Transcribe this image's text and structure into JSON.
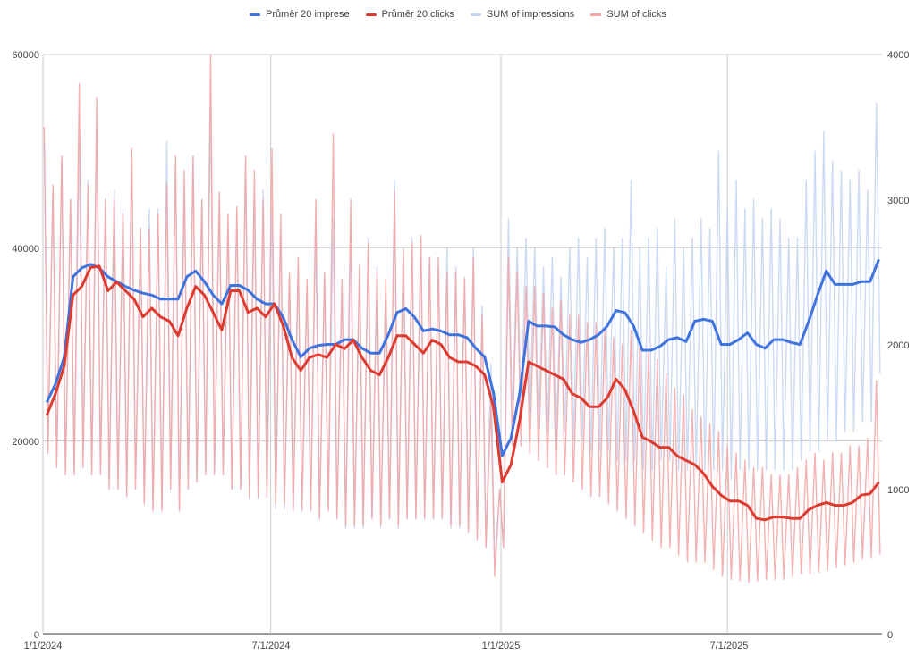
{
  "chart_data": {
    "type": "line",
    "title": "",
    "x_start": "2024-01-01",
    "interval": "weekly",
    "x_ticks": [
      "1/1/2024",
      "7/1/2024",
      "1/1/2025",
      "7/1/2025"
    ],
    "y_left": {
      "label": "",
      "range": [
        0,
        60000
      ],
      "ticks": [
        "0",
        "20000",
        "40000",
        "60000"
      ]
    },
    "y_right": {
      "label": "",
      "range": [
        0,
        4000
      ],
      "ticks": [
        "0",
        "1000",
        "2000",
        "3000",
        "4000"
      ]
    },
    "grid": true,
    "legend_position": "top",
    "series": [
      {
        "name": "Průměr 20 imprese",
        "axis": "left",
        "color": "#3f73dd",
        "kind": "moving-average",
        "values": [
          24000,
          25900,
          28700,
          37000,
          37900,
          38300,
          37900,
          37000,
          36500,
          36000,
          35600,
          35300,
          35100,
          34700,
          34700,
          34700,
          37000,
          37600,
          36500,
          35100,
          34200,
          36100,
          36100,
          35600,
          34700,
          34200,
          34200,
          32800,
          30500,
          28700,
          29600,
          29900,
          30000,
          30000,
          30500,
          30500,
          29600,
          29100,
          29100,
          31000,
          33300,
          33700,
          32800,
          31400,
          31600,
          31400,
          31000,
          31000,
          30700,
          29600,
          28700,
          25000,
          18500,
          20300,
          25000,
          32400,
          31900,
          31900,
          31800,
          31000,
          30500,
          30200,
          30500,
          31000,
          31900,
          33500,
          33300,
          31900,
          29400,
          29400,
          29800,
          30500,
          30700,
          30300,
          32400,
          32600,
          32400,
          30000,
          30000,
          30500,
          31200,
          30000,
          29600,
          30500,
          30500,
          30200,
          30000,
          32400,
          35100,
          37600,
          36200,
          36200,
          36200,
          36500,
          36500,
          38800
        ]
      },
      {
        "name": "Průměr 20 clicks",
        "axis": "right",
        "color": "#dd3b30",
        "kind": "moving-average",
        "values": [
          1510,
          1660,
          1850,
          2340,
          2400,
          2530,
          2540,
          2370,
          2430,
          2370,
          2310,
          2190,
          2250,
          2190,
          2160,
          2060,
          2250,
          2400,
          2340,
          2220,
          2100,
          2370,
          2370,
          2220,
          2250,
          2190,
          2280,
          2130,
          1910,
          1820,
          1910,
          1930,
          1910,
          2000,
          1970,
          2030,
          1910,
          1820,
          1790,
          1910,
          2060,
          2060,
          2000,
          1940,
          2030,
          2000,
          1910,
          1880,
          1880,
          1850,
          1790,
          1570,
          1050,
          1170,
          1480,
          1880,
          1850,
          1820,
          1790,
          1760,
          1660,
          1630,
          1570,
          1570,
          1630,
          1760,
          1690,
          1540,
          1360,
          1330,
          1290,
          1290,
          1230,
          1200,
          1170,
          1110,
          1020,
          960,
          920,
          920,
          890,
          800,
          790,
          810,
          810,
          800,
          800,
          860,
          890,
          910,
          890,
          890,
          910,
          960,
          970,
          1050
        ]
      },
      {
        "name": "SUM of impressions",
        "axis": "left",
        "color": "#c3d4f1",
        "kind": "daily",
        "weekly_peaks": [
          51000,
          46000,
          49000,
          45000,
          51000,
          47000,
          52000,
          45000,
          46000,
          44000,
          50000,
          42000,
          44000,
          44000,
          51000,
          49000,
          46000,
          49000,
          45000,
          54000,
          45000,
          42000,
          44000,
          49000,
          45000,
          46000,
          44000,
          42000,
          37000,
          38000,
          36000,
          42000,
          37000,
          43000,
          36000,
          42000,
          38000,
          41000,
          38000,
          36000,
          47000,
          40000,
          41000,
          41000,
          39000,
          38000,
          40000,
          38000,
          37000,
          40000,
          34000,
          28000,
          15000,
          43000,
          40000,
          41000,
          40000,
          38000,
          39000,
          37000,
          40000,
          41000,
          39000,
          41000,
          42000,
          40000,
          41000,
          47000,
          40000,
          41000,
          42000,
          38000,
          43000,
          40000,
          41000,
          43000,
          42000,
          50000,
          44000,
          47000,
          44000,
          45000,
          43000,
          44000,
          43000,
          41000,
          41000,
          47000,
          50000,
          52000,
          49000,
          48000,
          47000,
          48000,
          46000,
          55000
        ],
        "weekly_troughs": [
          20000,
          18000,
          17000,
          17000,
          19000,
          17000,
          17000,
          16000,
          16000,
          15000,
          16000,
          14000,
          13000,
          13000,
          16000,
          13000,
          16000,
          16000,
          17000,
          17000,
          17000,
          15000,
          15000,
          14000,
          14000,
          14000,
          13000,
          13000,
          13000,
          13000,
          13000,
          12000,
          13000,
          12000,
          11000,
          11000,
          11000,
          12000,
          11000,
          12000,
          11000,
          12000,
          12000,
          12000,
          12000,
          12000,
          11000,
          11000,
          11000,
          10000,
          9000,
          7000,
          9000,
          22000,
          23000,
          23000,
          22000,
          21000,
          20000,
          21000,
          20000,
          20000,
          19000,
          19000,
          19000,
          18000,
          18000,
          18000,
          17000,
          17000,
          18000,
          18000,
          17000,
          17000,
          17000,
          17000,
          17000,
          17000,
          16000,
          17000,
          17000,
          17000,
          17000,
          17000,
          17000,
          17000,
          18000,
          19000,
          19000,
          20000,
          20000,
          21000,
          21000,
          22000,
          22000,
          27000
        ]
      },
      {
        "name": "SUM of clicks",
        "axis": "right",
        "color": "#f3a3a3",
        "kind": "daily",
        "weekly_peaks": [
          3500,
          3100,
          3300,
          3000,
          3800,
          3100,
          3700,
          3000,
          3000,
          2900,
          3350,
          2800,
          2800,
          2900,
          3100,
          3300,
          3200,
          3300,
          3000,
          4000,
          3050,
          2900,
          2950,
          3300,
          3200,
          3000,
          3350,
          2900,
          2500,
          2600,
          2450,
          3000,
          2500,
          3450,
          2450,
          3000,
          2550,
          2700,
          2500,
          2450,
          3050,
          2650,
          2700,
          2750,
          2600,
          2600,
          2500,
          2500,
          2450,
          2600,
          2200,
          1600,
          1000,
          2600,
          2500,
          2400,
          2400,
          2350,
          2250,
          2300,
          2200,
          2200,
          2150,
          2150,
          2100,
          2050,
          2000,
          2100,
          2000,
          1950,
          1900,
          1800,
          1700,
          1650,
          1550,
          1500,
          1450,
          1400,
          1300,
          1250,
          1200,
          1150,
          1150,
          1100,
          1100,
          1100,
          1150,
          1200,
          1250,
          1200,
          1250,
          1250,
          1300,
          1300,
          1350,
          1750
        ],
        "weekly_troughs": [
          1250,
          1150,
          1100,
          1100,
          1150,
          1100,
          1100,
          1000,
          1000,
          950,
          1000,
          900,
          850,
          850,
          1000,
          850,
          1000,
          1050,
          1100,
          1100,
          1100,
          1000,
          1000,
          950,
          950,
          950,
          900,
          900,
          850,
          850,
          850,
          800,
          850,
          800,
          750,
          750,
          750,
          800,
          750,
          800,
          750,
          800,
          800,
          800,
          800,
          800,
          750,
          750,
          700,
          650,
          600,
          400,
          600,
          1300,
          1300,
          1250,
          1200,
          1150,
          1100,
          1100,
          1050,
          1000,
          950,
          950,
          900,
          850,
          800,
          750,
          700,
          650,
          600,
          600,
          550,
          500,
          500,
          500,
          450,
          400,
          380,
          370,
          360,
          370,
          380,
          380,
          380,
          400,
          420,
          420,
          430,
          440,
          460,
          480,
          500,
          520,
          530,
          550
        ]
      }
    ]
  }
}
